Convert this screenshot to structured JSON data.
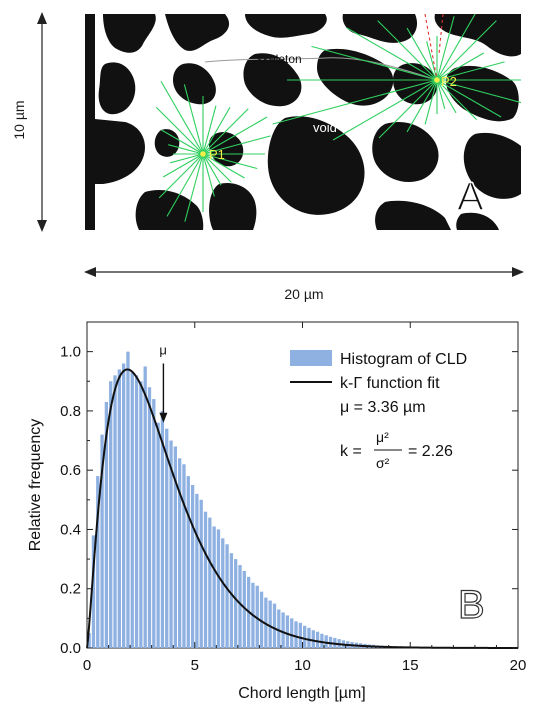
{
  "panel_a": {
    "label_skeleton": "skeleton",
    "label_void": "void",
    "label_p1": "P1",
    "label_p2": "P2",
    "panel_letter": "A",
    "height_label": "10 µm",
    "width_label": "20 µm"
  },
  "chart_data": {
    "type": "bar",
    "panel_letter": "B",
    "xlabel": "Chord length   [µm]",
    "ylabel": "Relative frequency",
    "xlim": [
      0,
      20
    ],
    "ylim": [
      0,
      1.1
    ],
    "xticks": [
      0,
      5,
      10,
      15,
      20
    ],
    "yticks": [
      0.0,
      0.2,
      0.4,
      0.6,
      0.8,
      1.0
    ],
    "ytick_labels": [
      "0.0",
      "0.2",
      "0.4",
      "0.6",
      "0.8",
      "1.0"
    ],
    "legend_position": "top-right",
    "legend": [
      {
        "label": "Histogram of CLD",
        "kind": "bar"
      },
      {
        "label": "k-Γ function fit",
        "kind": "line"
      }
    ],
    "annotation_mu": "μ = 3.36 µm",
    "annotation_k_lhs": "k =",
    "annotation_k_num": "μ²",
    "annotation_k_den": "σ²",
    "annotation_k_rhs": "= 2.26",
    "arrow_label": "μ",
    "mu": 3.36,
    "k": 2.26,
    "bin_width": 0.2,
    "series": [
      {
        "name": "Histogram of CLD",
        "x": [
          0.1,
          0.3,
          0.5,
          0.7,
          0.9,
          1.1,
          1.3,
          1.5,
          1.7,
          1.9,
          2.1,
          2.3,
          2.5,
          2.7,
          2.9,
          3.1,
          3.3,
          3.5,
          3.7,
          3.9,
          4.1,
          4.3,
          4.5,
          4.7,
          4.9,
          5.1,
          5.3,
          5.5,
          5.7,
          5.9,
          6.1,
          6.3,
          6.5,
          6.7,
          6.9,
          7.1,
          7.3,
          7.5,
          7.7,
          7.9,
          8.1,
          8.3,
          8.5,
          8.7,
          8.9,
          9.1,
          9.3,
          9.5,
          9.7,
          9.9,
          10.1,
          10.3,
          10.5,
          10.7,
          10.9,
          11.1,
          11.3,
          11.5,
          11.7,
          11.9,
          12.1,
          12.3,
          12.5,
          12.7,
          12.9,
          13.1,
          13.3,
          13.5,
          13.7,
          13.9,
          14.1,
          14.3,
          14.5,
          14.7,
          14.9,
          15.1,
          15.3,
          15.5,
          15.7,
          15.9
        ],
        "values": [
          0.05,
          0.38,
          0.58,
          0.72,
          0.83,
          0.9,
          0.92,
          0.94,
          0.96,
          1.0,
          0.93,
          0.92,
          0.9,
          0.95,
          0.88,
          0.84,
          0.76,
          0.8,
          0.74,
          0.7,
          0.68,
          0.64,
          0.62,
          0.58,
          0.55,
          0.52,
          0.5,
          0.46,
          0.44,
          0.41,
          0.4,
          0.37,
          0.35,
          0.32,
          0.3,
          0.28,
          0.26,
          0.24,
          0.22,
          0.21,
          0.19,
          0.17,
          0.16,
          0.15,
          0.13,
          0.12,
          0.11,
          0.1,
          0.09,
          0.085,
          0.075,
          0.068,
          0.06,
          0.055,
          0.048,
          0.043,
          0.038,
          0.034,
          0.03,
          0.026,
          0.023,
          0.02,
          0.018,
          0.016,
          0.014,
          0.012,
          0.011,
          0.009,
          0.008,
          0.007,
          0.006,
          0.005,
          0.005,
          0.004,
          0.004,
          0.003,
          0.003,
          0.002,
          0.002,
          0.002
        ]
      },
      {
        "name": "k-Γ function fit",
        "kind": "line"
      }
    ]
  }
}
